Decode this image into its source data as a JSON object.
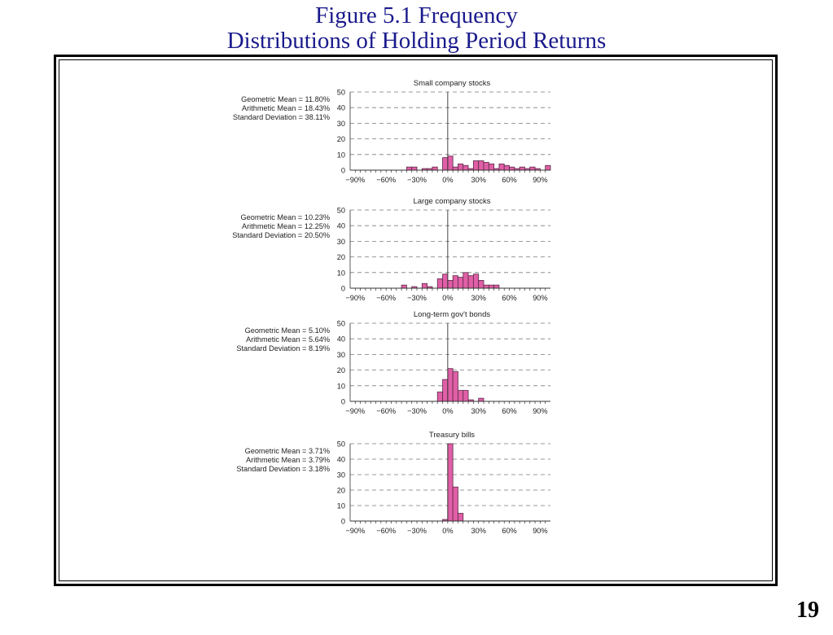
{
  "slide": {
    "title_line1": "Figure 5.1 Frequency",
    "title_line2": "Distributions of Holding Period Returns",
    "page_number": "19"
  },
  "colors": {
    "title": "#1a1a8c",
    "bar_fill": "#e05fa6",
    "bar_stroke": "#5a2a48",
    "grid": "#7a7a7a"
  },
  "chart_data": [
    {
      "type": "bar",
      "title": "Small company stocks",
      "stats": [
        "Geometric Mean = 11.80%",
        "Arithmetic Mean = 18.43%",
        "Standard Deviation = 38.11%"
      ],
      "x_ticks": [
        "−90%",
        "−60%",
        "−30%",
        "0%",
        "30%",
        "60%",
        "90%"
      ],
      "y_ticks": [
        "50",
        "40",
        "30",
        "20",
        "10",
        "0"
      ],
      "ylim": [
        0,
        50
      ],
      "xlim": [
        -95,
        100
      ],
      "bin_width": 5,
      "bins": [
        {
          "x": -40,
          "y": 2
        },
        {
          "x": -35,
          "y": 2
        },
        {
          "x": -25,
          "y": 1
        },
        {
          "x": -20,
          "y": 1
        },
        {
          "x": -15,
          "y": 2
        },
        {
          "x": -5,
          "y": 8
        },
        {
          "x": 0,
          "y": 9
        },
        {
          "x": 5,
          "y": 2
        },
        {
          "x": 10,
          "y": 4
        },
        {
          "x": 15,
          "y": 3
        },
        {
          "x": 20,
          "y": 1
        },
        {
          "x": 25,
          "y": 6
        },
        {
          "x": 30,
          "y": 6
        },
        {
          "x": 35,
          "y": 5
        },
        {
          "x": 40,
          "y": 4
        },
        {
          "x": 45,
          "y": 1
        },
        {
          "x": 50,
          "y": 4
        },
        {
          "x": 55,
          "y": 3
        },
        {
          "x": 60,
          "y": 2
        },
        {
          "x": 65,
          "y": 1
        },
        {
          "x": 70,
          "y": 2
        },
        {
          "x": 75,
          "y": 1
        },
        {
          "x": 80,
          "y": 2
        },
        {
          "x": 85,
          "y": 1
        },
        {
          "x": 95,
          "y": 3
        }
      ]
    },
    {
      "type": "bar",
      "title": "Large company stocks",
      "stats": [
        "Geometric Mean = 10.23%",
        "Arithmetic Mean = 12.25%",
        "Standard Deviation = 20.50%"
      ],
      "x_ticks": [
        "−90%",
        "−60%",
        "−30%",
        "0%",
        "30%",
        "60%",
        "90%"
      ],
      "y_ticks": [
        "50",
        "40",
        "30",
        "20",
        "10",
        "0"
      ],
      "ylim": [
        0,
        50
      ],
      "xlim": [
        -95,
        100
      ],
      "bin_width": 5,
      "bins": [
        {
          "x": -45,
          "y": 2
        },
        {
          "x": -35,
          "y": 1
        },
        {
          "x": -25,
          "y": 3
        },
        {
          "x": -20,
          "y": 1
        },
        {
          "x": -10,
          "y": 6
        },
        {
          "x": -5,
          "y": 9
        },
        {
          "x": 0,
          "y": 5
        },
        {
          "x": 5,
          "y": 8
        },
        {
          "x": 10,
          "y": 7
        },
        {
          "x": 15,
          "y": 10
        },
        {
          "x": 20,
          "y": 8
        },
        {
          "x": 25,
          "y": 9
        },
        {
          "x": 30,
          "y": 5
        },
        {
          "x": 35,
          "y": 2
        },
        {
          "x": 40,
          "y": 2
        },
        {
          "x": 45,
          "y": 2
        }
      ]
    },
    {
      "type": "bar",
      "title": "Long-term gov't bonds",
      "stats": [
        "Geometric Mean = 5.10%",
        "Arithmetic Mean = 5.64%",
        "Standard Deviation = 8.19%"
      ],
      "x_ticks": [
        "−90%",
        "−60%",
        "−30%",
        "0%",
        "30%",
        "60%",
        "90%"
      ],
      "y_ticks": [
        "50",
        "40",
        "30",
        "20",
        "10",
        "0"
      ],
      "ylim": [
        0,
        50
      ],
      "xlim": [
        -95,
        100
      ],
      "bin_width": 5,
      "bins": [
        {
          "x": -10,
          "y": 6
        },
        {
          "x": -5,
          "y": 14
        },
        {
          "x": 0,
          "y": 21
        },
        {
          "x": 5,
          "y": 19
        },
        {
          "x": 10,
          "y": 7
        },
        {
          "x": 15,
          "y": 7
        },
        {
          "x": 20,
          "y": 1
        },
        {
          "x": 30,
          "y": 2
        }
      ]
    },
    {
      "type": "bar",
      "title": "Treasury bills",
      "stats": [
        "Geometric Mean = 3.71%",
        "Arithmetic Mean = 3.79%",
        "Standard Deviation = 3.18%"
      ],
      "x_ticks": [
        "−90%",
        "−60%",
        "−30%",
        "0%",
        "30%",
        "60%",
        "90%"
      ],
      "y_ticks": [
        "50",
        "40",
        "30",
        "20",
        "10",
        "0"
      ],
      "ylim": [
        0,
        50
      ],
      "xlim": [
        -95,
        100
      ],
      "bin_width": 5,
      "bins": [
        {
          "x": -5,
          "y": 1
        },
        {
          "x": 0,
          "y": 50
        },
        {
          "x": 5,
          "y": 22
        },
        {
          "x": 10,
          "y": 5
        }
      ]
    }
  ]
}
